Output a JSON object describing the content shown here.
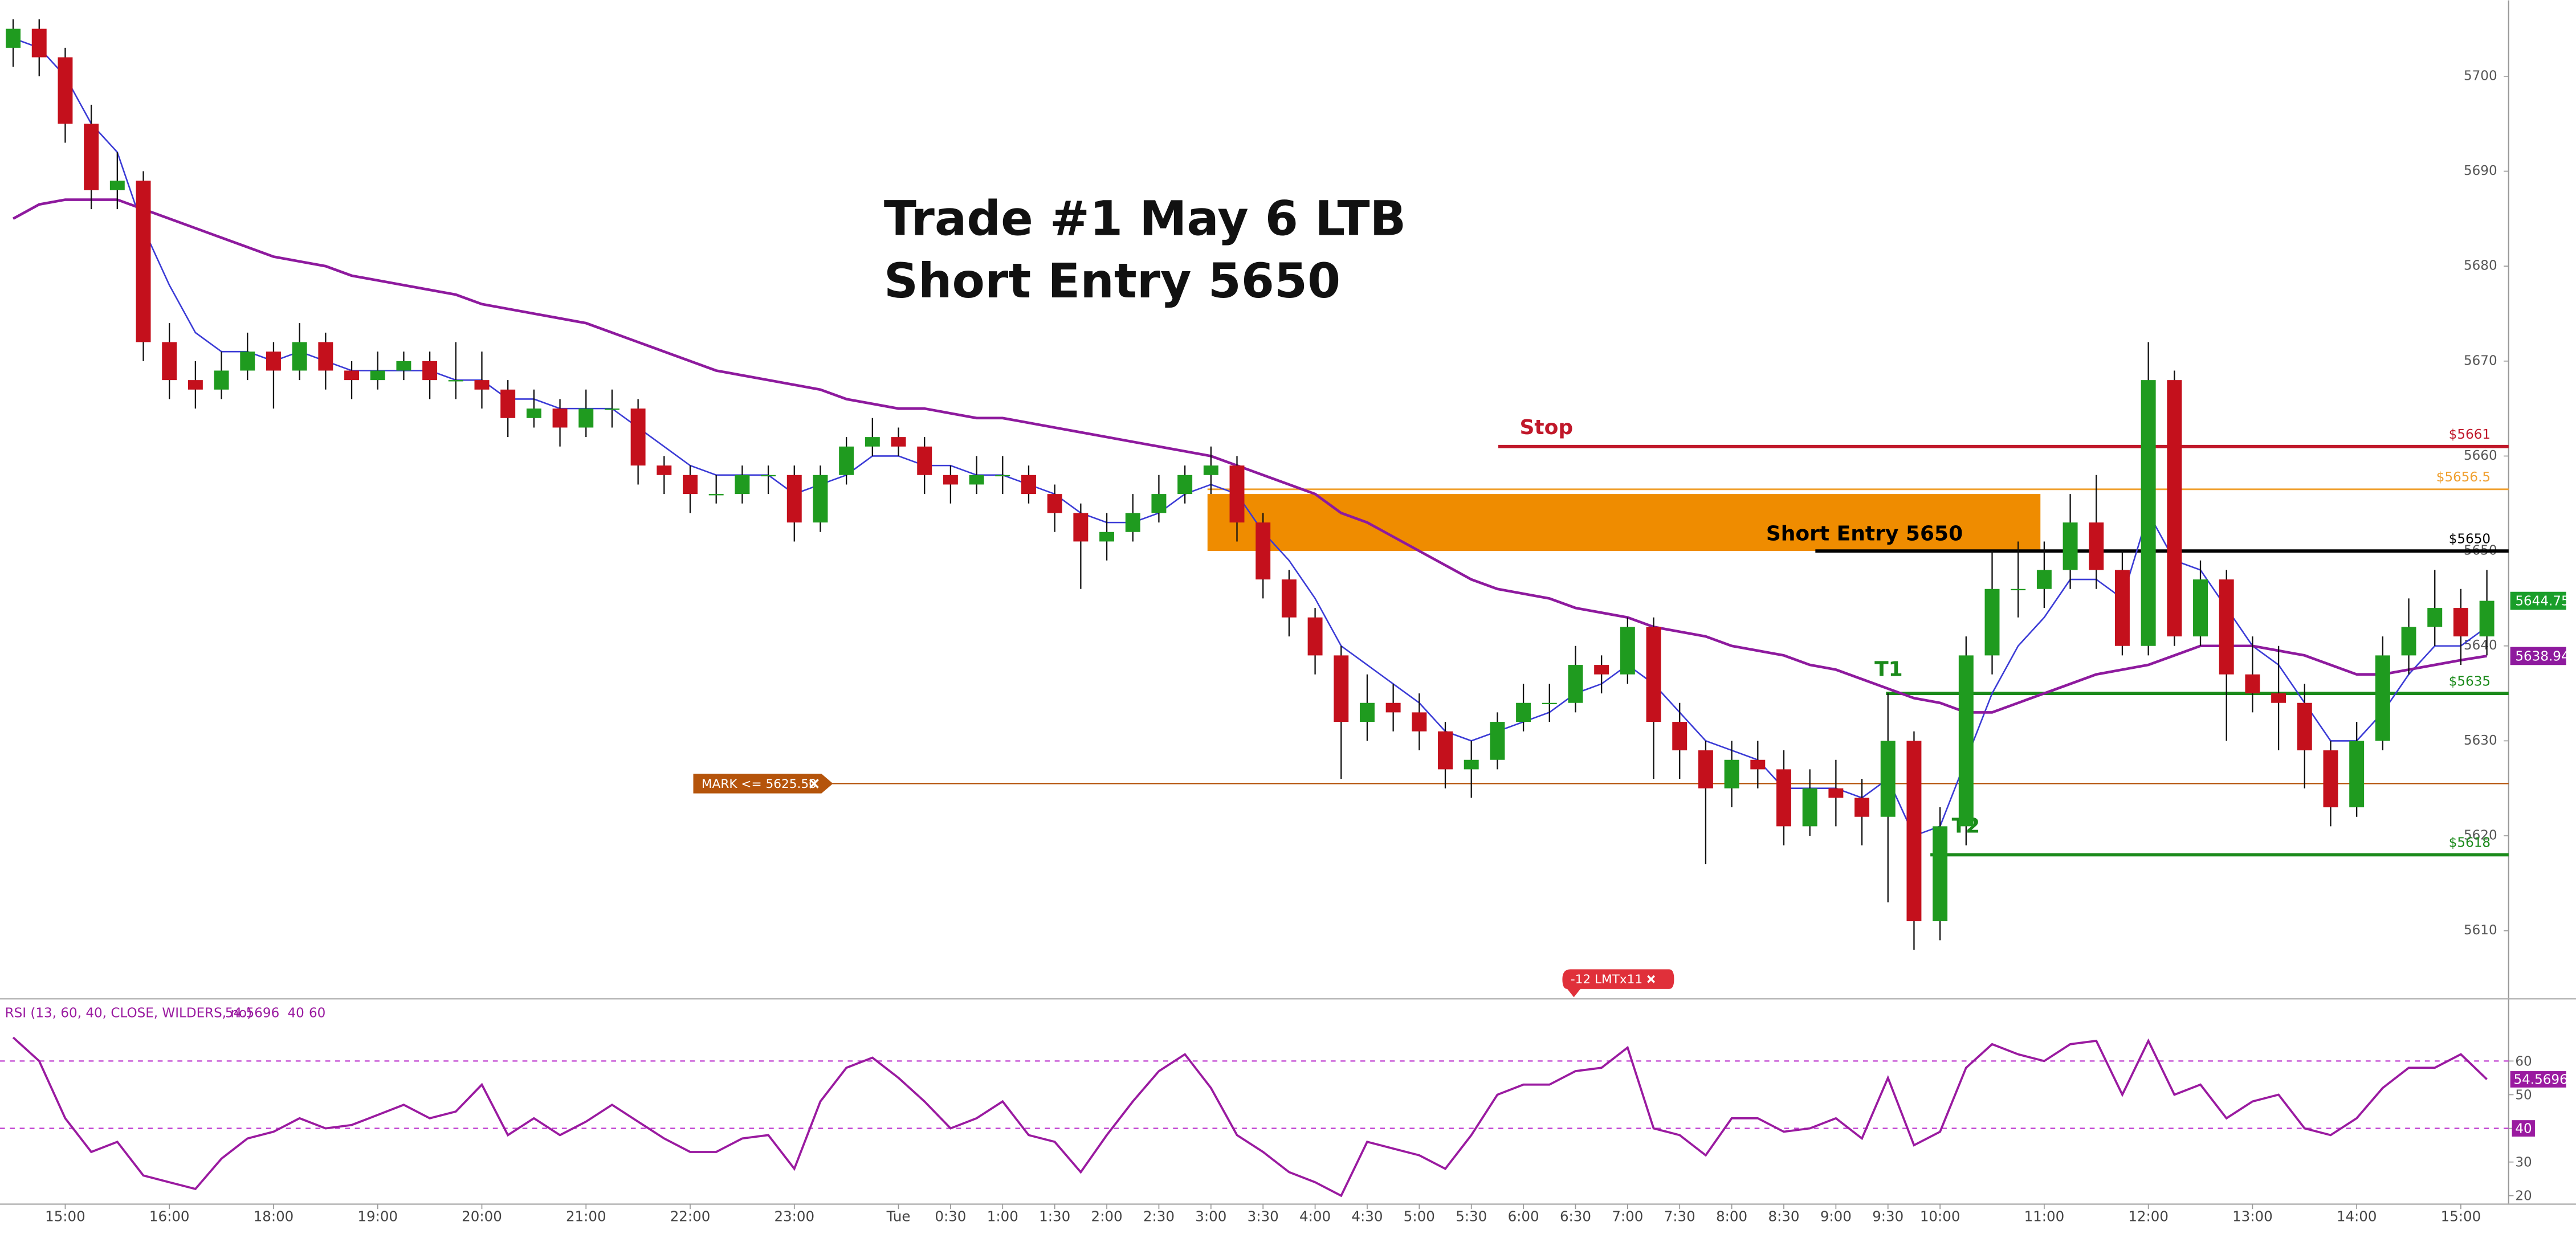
{
  "chart_data": [
    {
      "type": "candlestick",
      "title": [
        "Trade #1 May 6 LTB",
        "Short Entry 5650"
      ],
      "categories": [
        null,
        null,
        "15:00",
        null,
        null,
        null,
        "16:00",
        null,
        null,
        null,
        "18:00",
        null,
        null,
        null,
        "19:00",
        null,
        null,
        null,
        "20:00",
        null,
        null,
        null,
        "21:00",
        null,
        null,
        null,
        "22:00",
        null,
        null,
        null,
        "23:00",
        null,
        null,
        null,
        "Tue",
        null,
        "0:30",
        null,
        "1:00",
        null,
        "1:30",
        null,
        "2:00",
        null,
        "2:30",
        null,
        "3:00",
        null,
        "3:30",
        null,
        "4:00",
        null,
        "4:30",
        null,
        "5:00",
        null,
        "5:30",
        null,
        "6:00",
        null,
        "6:30",
        null,
        "7:00",
        null,
        "7:30",
        null,
        "8:00",
        null,
        "8:30",
        null,
        "9:00",
        null,
        "9:30",
        null,
        "10:00",
        null,
        null,
        null,
        "11:00",
        null,
        null,
        null,
        "12:00",
        null,
        null,
        null,
        "13:00",
        null,
        null,
        null,
        "14:00",
        null,
        null,
        null,
        "15:00",
        null
      ],
      "ohlc": [
        [
          5703,
          5706,
          5701,
          5705
        ],
        [
          5705,
          5706,
          5700,
          5702
        ],
        [
          5702,
          5703,
          5693,
          5695
        ],
        [
          5695,
          5697,
          5686,
          5688
        ],
        [
          5688,
          5692,
          5686,
          5689
        ],
        [
          5689,
          5690,
          5670,
          5672
        ],
        [
          5672,
          5674,
          5666,
          5668
        ],
        [
          5668,
          5670,
          5665,
          5667
        ],
        [
          5667,
          5671,
          5666,
          5669
        ],
        [
          5669,
          5673,
          5668,
          5671
        ],
        [
          5671,
          5672,
          5665,
          5669
        ],
        [
          5669,
          5674,
          5668,
          5672
        ],
        [
          5672,
          5673,
          5667,
          5669
        ],
        [
          5669,
          5670,
          5666,
          5668
        ],
        [
          5668,
          5671,
          5667,
          5669
        ],
        [
          5669,
          5671,
          5668,
          5670
        ],
        [
          5670,
          5671,
          5666,
          5668
        ],
        [
          5668,
          5672,
          5666,
          5668
        ],
        [
          5668,
          5671,
          5665,
          5667
        ],
        [
          5667,
          5668,
          5662,
          5664
        ],
        [
          5664,
          5667,
          5663,
          5665
        ],
        [
          5665,
          5666,
          5661,
          5663
        ],
        [
          5663,
          5667,
          5662,
          5665
        ],
        [
          5665,
          5667,
          5663,
          5665
        ],
        [
          5665,
          5666,
          5657,
          5659
        ],
        [
          5659,
          5660,
          5656,
          5658
        ],
        [
          5658,
          5659,
          5654,
          5656
        ],
        [
          5656,
          5658,
          5655,
          5656
        ],
        [
          5656,
          5659,
          5655,
          5658
        ],
        [
          5658,
          5659,
          5656,
          5658
        ],
        [
          5658,
          5659,
          5651,
          5653
        ],
        [
          5653,
          5659,
          5652,
          5658
        ],
        [
          5658,
          5662,
          5657,
          5661
        ],
        [
          5661,
          5664,
          5660,
          5662
        ],
        [
          5662,
          5663,
          5660,
          5661
        ],
        [
          5661,
          5662,
          5656,
          5658
        ],
        [
          5658,
          5659,
          5655,
          5657
        ],
        [
          5657,
          5660,
          5656,
          5658
        ],
        [
          5658,
          5660,
          5656,
          5658
        ],
        [
          5658,
          5659,
          5655,
          5656
        ],
        [
          5656,
          5657,
          5652,
          5654
        ],
        [
          5654,
          5655,
          5646,
          5651
        ],
        [
          5651,
          5654,
          5649,
          5652
        ],
        [
          5652,
          5656,
          5651,
          5654
        ],
        [
          5654,
          5658,
          5653,
          5656
        ],
        [
          5656,
          5659,
          5655,
          5658
        ],
        [
          5658,
          5661,
          5656,
          5659
        ],
        [
          5659,
          5660,
          5651,
          5653
        ],
        [
          5653,
          5654,
          5645,
          5647
        ],
        [
          5647,
          5648,
          5641,
          5643
        ],
        [
          5643,
          5644,
          5637,
          5639
        ],
        [
          5639,
          5640,
          5626,
          5632
        ],
        [
          5632,
          5637,
          5630,
          5634
        ],
        [
          5634,
          5636,
          5631,
          5633
        ],
        [
          5633,
          5635,
          5629,
          5631
        ],
        [
          5631,
          5632,
          5625,
          5627
        ],
        [
          5627,
          5630,
          5624,
          5628
        ],
        [
          5628,
          5633,
          5627,
          5632
        ],
        [
          5632,
          5636,
          5631,
          5634
        ],
        [
          5634,
          5636,
          5632,
          5634
        ],
        [
          5634,
          5640,
          5633,
          5638
        ],
        [
          5638,
          5639,
          5635,
          5637
        ],
        [
          5637,
          5643,
          5636,
          5642
        ],
        [
          5642,
          5643,
          5626,
          5632
        ],
        [
          5632,
          5634,
          5626,
          5629
        ],
        [
          5629,
          5630,
          5617,
          5625
        ],
        [
          5625,
          5630,
          5623,
          5628
        ],
        [
          5628,
          5630,
          5625,
          5627
        ],
        [
          5627,
          5629,
          5619,
          5621
        ],
        [
          5621,
          5627,
          5620,
          5625
        ],
        [
          5625,
          5628,
          5621,
          5624
        ],
        [
          5624,
          5626,
          5619,
          5622
        ],
        [
          5622,
          5635,
          5613,
          5630
        ],
        [
          5630,
          5631,
          5608,
          5611
        ],
        [
          5611,
          5623,
          5609,
          5621
        ],
        [
          5621,
          5641,
          5619,
          5639
        ],
        [
          5639,
          5650,
          5637,
          5646
        ],
        [
          5646,
          5651,
          5643,
          5646
        ],
        [
          5646,
          5651,
          5644,
          5648
        ],
        [
          5648,
          5656,
          5646,
          5653
        ],
        [
          5653,
          5658,
          5646,
          5648
        ],
        [
          5648,
          5650,
          5639,
          5640
        ],
        [
          5640,
          5672,
          5639,
          5668
        ],
        [
          5668,
          5669,
          5640,
          5641
        ],
        [
          5641,
          5649,
          5640,
          5647
        ],
        [
          5647,
          5648,
          5630,
          5637
        ],
        [
          5637,
          5641,
          5633,
          5635
        ],
        [
          5635,
          5640,
          5629,
          5634
        ],
        [
          5634,
          5636,
          5625,
          5629
        ],
        [
          5629,
          5630,
          5621,
          5623
        ],
        [
          5623,
          5632,
          5622,
          5630
        ],
        [
          5630,
          5641,
          5629,
          5639
        ],
        [
          5639,
          5645,
          5637,
          5642
        ],
        [
          5642,
          5648,
          5640,
          5644
        ],
        [
          5644,
          5646,
          5638,
          5641
        ],
        [
          5641,
          5648,
          5639,
          5644.75
        ]
      ],
      "up_color": "#1f9b1f",
      "down_color": "#c4101c",
      "moving_averages": [
        {
          "color": "#3b3bd6",
          "values": [
            5704,
            5703,
            5700,
            5695,
            5692,
            5684,
            5678,
            5673,
            5671,
            5671,
            5670,
            5671,
            5670,
            5669,
            5669,
            5669,
            5669,
            5668,
            5668,
            5666,
            5666,
            5665,
            5665,
            5665,
            5663,
            5661,
            5659,
            5658,
            5658,
            5658,
            5656,
            5657,
            5658,
            5660,
            5660,
            5659,
            5659,
            5658,
            5658,
            5657,
            5656,
            5654,
            5653,
            5653,
            5654,
            5656,
            5657,
            5656,
            5652,
            5649,
            5645,
            5640,
            5638,
            5636,
            5634,
            5631,
            5630,
            5631,
            5632,
            5633,
            5635,
            5636,
            5638,
            5636,
            5633,
            5630,
            5629,
            5628,
            5625,
            5625,
            5625,
            5624,
            5626,
            5620,
            5621,
            5628,
            5635,
            5640,
            5643,
            5647,
            5647,
            5645,
            5654,
            5649,
            5648,
            5644,
            5640,
            5638,
            5634,
            5630,
            5630,
            5633,
            5637,
            5640,
            5640,
            5642
          ]
        },
        {
          "color": "#8e1a9e",
          "values": [
            5685,
            5686.5,
            5687,
            5687,
            5687,
            5686,
            5685,
            5684,
            5683,
            5682,
            5681,
            5680.5,
            5680,
            5679,
            5678.5,
            5678,
            5677.5,
            5677,
            5676,
            5675.5,
            5675,
            5674.5,
            5674,
            5673,
            5672,
            5671,
            5670,
            5669,
            5668.5,
            5668,
            5667.5,
            5667,
            5666,
            5665.5,
            5665,
            5665,
            5664.5,
            5664,
            5664,
            5663.5,
            5663,
            5662.5,
            5662,
            5661.5,
            5661,
            5660.5,
            5660,
            5659,
            5658,
            5657,
            5656,
            5654,
            5653,
            5651.5,
            5650,
            5648.5,
            5647,
            5646,
            5645.5,
            5645,
            5644,
            5643.5,
            5643,
            5642,
            5641.5,
            5641,
            5640,
            5639.5,
            5639,
            5638,
            5637.5,
            5636.5,
            5635.5,
            5634.5,
            5634,
            5633,
            5633,
            5634,
            5635,
            5636,
            5637,
            5637.5,
            5638,
            5639,
            5640,
            5640,
            5640,
            5639.5,
            5639,
            5638,
            5637,
            5637,
            5637.5,
            5638,
            5638.5,
            5638.94
          ]
        }
      ],
      "ylim": [
        5603,
        5708
      ],
      "yticks": [
        5610,
        5620,
        5630,
        5640,
        5650,
        5660,
        5670,
        5680,
        5690,
        5700
      ],
      "zone": {
        "from": 5650,
        "to": 5656,
        "color": "#ef8c00"
      },
      "price_lines": [
        {
          "text": "Stop",
          "value": 5661,
          "label": "$5661",
          "color": "#c0182a"
        },
        {
          "value": 5656.5,
          "label": "$5656.5",
          "color": "#f0a030"
        },
        {
          "text": "Short Entry 5650",
          "value": 5650,
          "label": "$5650",
          "color": "#000000"
        },
        {
          "text": "T1",
          "value": 5635,
          "label": "$5635",
          "color": "#1a8a1a"
        },
        {
          "text": "T2",
          "value": 5618,
          "label": "$5618",
          "color": "#1a8a1a"
        }
      ],
      "mark_line": {
        "value": 5625.5,
        "label": "MARK <= 5625.50",
        "color": "#b5540b"
      },
      "order_tag": {
        "label": "-12 LMTx11",
        "color": "#e0303a"
      }
    },
    {
      "type": "line",
      "title": "RSI (13, 60, 40, CLOSE, WILDERS, no)",
      "color": "#9a1aa0",
      "values": [
        67,
        60,
        43,
        33,
        36,
        26,
        24,
        22,
        31,
        37,
        39,
        43,
        40,
        41,
        44,
        47,
        43,
        45,
        53,
        38,
        43,
        38,
        42,
        47,
        42,
        37,
        33,
        33,
        37,
        38,
        28,
        48,
        58,
        61,
        55,
        48,
        40,
        43,
        48,
        38,
        36,
        27,
        38,
        48,
        57,
        62,
        52,
        38,
        33,
        27,
        24,
        20,
        36,
        34,
        32,
        28,
        38,
        50,
        53,
        53,
        57,
        58,
        64,
        40,
        38,
        32,
        43,
        43,
        39,
        40,
        43,
        37,
        55,
        35,
        39,
        58,
        65,
        62,
        60,
        65,
        66,
        50,
        66,
        50,
        53,
        43,
        48,
        50,
        40,
        38,
        43,
        52,
        58,
        58,
        62,
        54.5696
      ],
      "levels": [
        40,
        60
      ],
      "ylim": [
        17.5,
        77.5
      ],
      "yticks": [
        20,
        30,
        40,
        50,
        60
      ]
    }
  ]
}
